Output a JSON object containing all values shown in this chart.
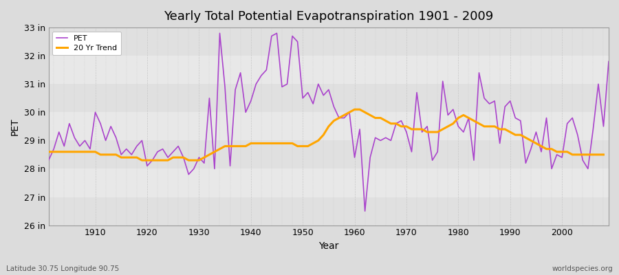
{
  "title": "Yearly Total Potential Evapotranspiration 1901 - 2009",
  "xlabel": "Year",
  "ylabel": "PET",
  "subtitle_left": "Latitude 30.75 Longitude 90.75",
  "subtitle_right": "worldspecies.org",
  "pet_color": "#aa44cc",
  "trend_color": "#FFA500",
  "bg_color": "#dcdcdc",
  "plot_bg_color": "#e8e8e8",
  "grid_color": "#ffffff",
  "ylim": [
    26,
    33
  ],
  "yticks": [
    26,
    27,
    28,
    29,
    30,
    31,
    32,
    33
  ],
  "ytick_labels": [
    "26 in",
    "27 in",
    "28 in",
    "29 in",
    "30 in",
    "31 in",
    "32 in",
    "33 in"
  ],
  "band_colors": [
    "#e0e0e0",
    "#e8e8e8"
  ],
  "years": [
    1901,
    1902,
    1903,
    1904,
    1905,
    1906,
    1907,
    1908,
    1909,
    1910,
    1911,
    1912,
    1913,
    1914,
    1915,
    1916,
    1917,
    1918,
    1919,
    1920,
    1921,
    1922,
    1923,
    1924,
    1925,
    1926,
    1927,
    1928,
    1929,
    1930,
    1931,
    1932,
    1933,
    1934,
    1935,
    1936,
    1937,
    1938,
    1939,
    1940,
    1941,
    1942,
    1943,
    1944,
    1945,
    1946,
    1947,
    1948,
    1949,
    1950,
    1951,
    1952,
    1953,
    1954,
    1955,
    1956,
    1957,
    1958,
    1959,
    1960,
    1961,
    1962,
    1963,
    1964,
    1965,
    1966,
    1967,
    1968,
    1969,
    1970,
    1971,
    1972,
    1973,
    1974,
    1975,
    1976,
    1977,
    1978,
    1979,
    1980,
    1981,
    1982,
    1983,
    1984,
    1985,
    1986,
    1987,
    1988,
    1989,
    1990,
    1991,
    1992,
    1993,
    1994,
    1995,
    1996,
    1997,
    1998,
    1999,
    2000,
    2001,
    2002,
    2003,
    2004,
    2005,
    2006,
    2007,
    2008,
    2009
  ],
  "pet_values": [
    28.3,
    28.7,
    29.3,
    28.8,
    29.6,
    29.1,
    28.8,
    29.0,
    28.7,
    30.0,
    29.6,
    29.0,
    29.5,
    29.1,
    28.5,
    28.7,
    28.5,
    28.8,
    29.0,
    28.1,
    28.3,
    28.6,
    28.7,
    28.4,
    28.6,
    28.8,
    28.4,
    27.8,
    28.0,
    28.4,
    28.2,
    30.5,
    28.0,
    32.8,
    30.9,
    28.1,
    30.8,
    31.4,
    30.0,
    30.4,
    31.0,
    31.3,
    31.5,
    32.7,
    32.8,
    30.9,
    31.0,
    32.7,
    32.5,
    30.5,
    30.7,
    30.3,
    31.0,
    30.6,
    30.8,
    30.2,
    29.8,
    29.8,
    30.0,
    28.4,
    29.4,
    26.5,
    28.4,
    29.1,
    29.0,
    29.1,
    29.0,
    29.6,
    29.7,
    29.3,
    28.6,
    30.7,
    29.3,
    29.5,
    28.3,
    28.6,
    31.1,
    29.9,
    30.1,
    29.5,
    29.3,
    29.8,
    28.3,
    31.4,
    30.5,
    30.3,
    30.4,
    28.9,
    30.2,
    30.4,
    29.8,
    29.7,
    28.2,
    28.7,
    29.3,
    28.6,
    29.8,
    28.0,
    28.5,
    28.4,
    29.6,
    29.8,
    29.2,
    28.3,
    28.0,
    29.4,
    31.0,
    29.5,
    31.8
  ],
  "trend_values": [
    28.6,
    28.6,
    28.6,
    28.6,
    28.6,
    28.6,
    28.6,
    28.6,
    28.6,
    28.6,
    28.5,
    28.5,
    28.5,
    28.5,
    28.4,
    28.4,
    28.4,
    28.4,
    28.3,
    28.3,
    28.3,
    28.3,
    28.3,
    28.3,
    28.4,
    28.4,
    28.4,
    28.3,
    28.3,
    28.3,
    28.4,
    28.5,
    28.6,
    28.7,
    28.8,
    28.8,
    28.8,
    28.8,
    28.8,
    28.9,
    28.9,
    28.9,
    28.9,
    28.9,
    28.9,
    28.9,
    28.9,
    28.9,
    28.8,
    28.8,
    28.8,
    28.9,
    29.0,
    29.2,
    29.5,
    29.7,
    29.8,
    29.9,
    30.0,
    30.1,
    30.1,
    30.0,
    29.9,
    29.8,
    29.8,
    29.7,
    29.6,
    29.6,
    29.5,
    29.5,
    29.4,
    29.4,
    29.4,
    29.3,
    29.3,
    29.3,
    29.4,
    29.5,
    29.6,
    29.8,
    29.9,
    29.8,
    29.7,
    29.6,
    29.5,
    29.5,
    29.5,
    29.4,
    29.4,
    29.3,
    29.2,
    29.2,
    29.1,
    29.0,
    28.9,
    28.8,
    28.7,
    28.7,
    28.6,
    28.6,
    28.6,
    28.5,
    28.5,
    28.5,
    28.5,
    28.5,
    28.5,
    28.5,
    null
  ]
}
